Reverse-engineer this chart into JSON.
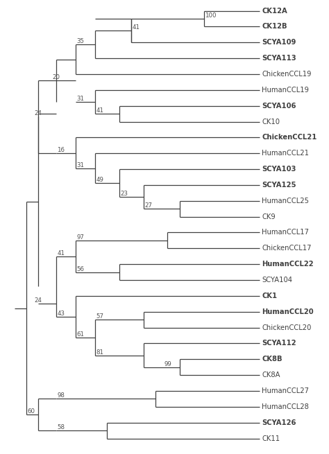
{
  "background": "#ffffff",
  "line_color": "#404040",
  "bootstrap_color": "#505050",
  "font_size_label": 7.2,
  "font_size_bootstrap": 6.2,
  "leaves": [
    "CK12A",
    "CK12B",
    "SCYA109",
    "SCYA113",
    "ChickenCCL19",
    "HumanCCL19",
    "SCYA106",
    "CK10",
    "ChickenCCL21",
    "HumanCCL21",
    "SCYA103",
    "SCYA125",
    "HumanCCL25",
    "CK9",
    "HumanCCL17",
    "ChickenCCL17",
    "HumanCCL22",
    "SCYA104",
    "CK1",
    "HumanCCL20",
    "ChickenCCL20",
    "SCYA112",
    "CK8B",
    "CK8A",
    "HumanCCL27",
    "HumanCCL28",
    "SCYA126",
    "CK11"
  ],
  "bold_labels": [
    "CK12A",
    "CK12B",
    "SCYA109",
    "SCYA113",
    "SCYA106",
    "ChickenCCL21",
    "SCYA103",
    "SCYA125",
    "HumanCCL22",
    "CK1",
    "HumanCCL20",
    "SCYA112",
    "CK8B",
    "SCYA126"
  ]
}
